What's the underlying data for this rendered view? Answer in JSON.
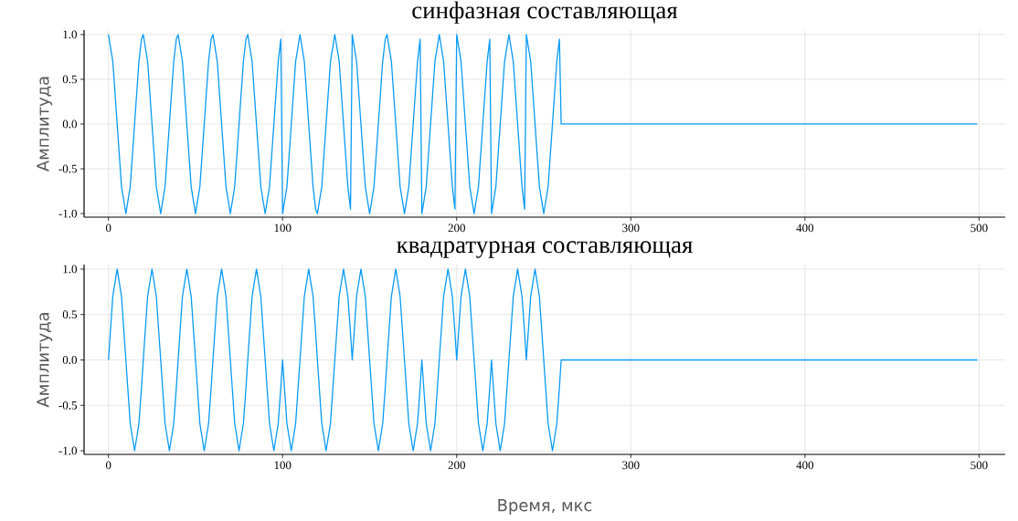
{
  "chart_data": [
    {
      "type": "line",
      "title": "синфазная составляющая",
      "ylabel": "Амплитуда",
      "xlim": [
        -14,
        515
      ],
      "ylim": [
        -1.04,
        1.05
      ],
      "xticks": [
        0,
        100,
        200,
        300,
        400,
        500
      ],
      "yticks": [
        {
          "value": -1,
          "label": "-1.0"
        },
        {
          "value": -0.5,
          "label": "-0.5"
        },
        {
          "value": 0,
          "label": "0.0"
        },
        {
          "value": 0.5,
          "label": "0.5"
        },
        {
          "value": 1,
          "label": "1.0"
        }
      ],
      "grid": true,
      "marker": "none",
      "x": [
        0,
        2.5,
        5,
        7.5,
        10,
        12.5,
        15,
        17.5,
        19,
        20,
        22.5,
        25,
        27.5,
        30,
        32.5,
        35,
        37.5,
        39,
        40,
        42.5,
        45,
        47.5,
        50,
        52.5,
        55,
        57.5,
        59,
        60,
        62.5,
        65,
        67.5,
        70,
        72.5,
        75,
        77.5,
        79,
        80,
        82.5,
        85,
        87.5,
        90,
        92.5,
        95,
        97.5,
        99,
        100,
        102.5,
        105,
        107.5,
        110,
        112.5,
        115,
        117.5,
        119,
        120,
        122.5,
        125,
        127.5,
        130,
        132.5,
        135,
        137.5,
        139,
        140,
        142.5,
        145,
        147.5,
        150,
        152.5,
        155,
        157.5,
        159,
        160,
        162.5,
        165,
        167.5,
        170,
        172.5,
        175,
        177.5,
        179,
        180,
        182.5,
        185,
        187.5,
        190,
        192.5,
        195,
        197.5,
        199,
        200,
        202.5,
        205,
        207.5,
        210,
        212.5,
        215,
        217.5,
        219,
        220,
        222.5,
        225,
        227.5,
        230,
        232.5,
        235,
        237.5,
        239,
        240,
        242.5,
        245,
        247.5,
        250,
        252.5,
        255,
        257.5,
        259,
        260,
        499
      ],
      "series": [
        {
          "color": "#0a9bf5",
          "values": [
            1,
            0.7,
            0,
            -0.7,
            -1,
            -0.7,
            0,
            0.7,
            0.95,
            1,
            0.7,
            0,
            -0.7,
            -1,
            -0.7,
            0,
            0.7,
            0.95,
            1,
            0.7,
            0,
            -0.7,
            -1,
            -0.7,
            0,
            0.7,
            0.95,
            1,
            0.7,
            0,
            -0.7,
            -1,
            -0.7,
            0,
            0.7,
            0.95,
            1,
            0.7,
            0,
            -0.7,
            -1,
            -0.7,
            0,
            0.7,
            0.95,
            -1,
            -0.7,
            0,
            0.7,
            1,
            0.7,
            0,
            -0.7,
            -0.95,
            -1,
            -0.7,
            0,
            0.7,
            1,
            0.7,
            0,
            -0.7,
            -0.95,
            1,
            0.7,
            0,
            -0.7,
            -1,
            -0.7,
            0,
            0.7,
            0.95,
            1,
            0.7,
            0,
            -0.7,
            -1,
            -0.7,
            0,
            0.7,
            0.95,
            -1,
            -0.7,
            0,
            0.7,
            1,
            0.7,
            0,
            -0.7,
            -0.95,
            1,
            0.7,
            0,
            -0.7,
            -1,
            -0.7,
            0,
            0.7,
            0.95,
            -1,
            -0.7,
            0,
            0.7,
            1,
            0.7,
            0,
            -0.7,
            -0.95,
            1,
            0.7,
            0,
            -0.7,
            -1,
            -0.7,
            0,
            0.7,
            0.95,
            0,
            0
          ]
        }
      ]
    },
    {
      "type": "line",
      "title": "квадратурная составляющая",
      "xlabel": "Время, мкс",
      "ylabel": "Амплитуда",
      "xlim": [
        -14,
        515
      ],
      "ylim": [
        -1.04,
        1.05
      ],
      "xticks": [
        0,
        100,
        200,
        300,
        400,
        500
      ],
      "yticks": [
        {
          "value": -1,
          "label": "-1.0"
        },
        {
          "value": -0.5,
          "label": "-0.5"
        },
        {
          "value": 0,
          "label": "0.0"
        },
        {
          "value": 0.5,
          "label": "0.5"
        },
        {
          "value": 1,
          "label": "1.0"
        }
      ],
      "grid": true,
      "marker": "none",
      "x": [
        0,
        2.5,
        5,
        7.5,
        10,
        12.5,
        15,
        17.5,
        19,
        20,
        22.5,
        25,
        27.5,
        30,
        32.5,
        35,
        37.5,
        39,
        40,
        42.5,
        45,
        47.5,
        50,
        52.5,
        55,
        57.5,
        59,
        60,
        62.5,
        65,
        67.5,
        70,
        72.5,
        75,
        77.5,
        79,
        80,
        82.5,
        85,
        87.5,
        90,
        92.5,
        95,
        97.5,
        99,
        100,
        102.5,
        105,
        107.5,
        110,
        112.5,
        115,
        117.5,
        119,
        120,
        122.5,
        125,
        127.5,
        130,
        132.5,
        135,
        137.5,
        139,
        140,
        142.5,
        145,
        147.5,
        150,
        152.5,
        155,
        157.5,
        159,
        160,
        162.5,
        165,
        167.5,
        170,
        172.5,
        175,
        177.5,
        179,
        180,
        182.5,
        185,
        187.5,
        190,
        192.5,
        195,
        197.5,
        199,
        200,
        202.5,
        205,
        207.5,
        210,
        212.5,
        215,
        217.5,
        219,
        220,
        222.5,
        225,
        227.5,
        230,
        232.5,
        235,
        237.5,
        239,
        240,
        242.5,
        245,
        247.5,
        250,
        252.5,
        255,
        257.5,
        259,
        260,
        499
      ],
      "series": [
        {
          "color": "#0a9bf5",
          "values": [
            0,
            0.7,
            1,
            0.7,
            0,
            -0.7,
            -1,
            -0.7,
            -0.3,
            0,
            0.7,
            1,
            0.7,
            0,
            -0.7,
            -1,
            -0.7,
            -0.3,
            0,
            0.7,
            1,
            0.7,
            0,
            -0.7,
            -1,
            -0.7,
            -0.3,
            0,
            0.7,
            1,
            0.7,
            0,
            -0.7,
            -1,
            -0.7,
            -0.3,
            0,
            0.7,
            1,
            0.7,
            0,
            -0.7,
            -1,
            -0.7,
            -0.3,
            0,
            -0.7,
            -1,
            -0.7,
            0,
            0.7,
            1,
            0.7,
            0.3,
            0,
            -0.7,
            -1,
            -0.7,
            0,
            0.7,
            1,
            0.7,
            0.3,
            0,
            0.7,
            1,
            0.7,
            0,
            -0.7,
            -1,
            -0.7,
            -0.3,
            0,
            0.7,
            1,
            0.7,
            0,
            -0.7,
            -1,
            -0.7,
            -0.3,
            0,
            -0.7,
            -1,
            -0.7,
            0,
            0.7,
            1,
            0.7,
            0.3,
            0,
            0.7,
            1,
            0.7,
            0,
            -0.7,
            -1,
            -0.7,
            -0.3,
            0,
            -0.7,
            -1,
            -0.7,
            0,
            0.7,
            1,
            0.7,
            0.3,
            0,
            0.7,
            1,
            0.7,
            0,
            -0.7,
            -1,
            -0.7,
            -0.3,
            0,
            0
          ]
        }
      ]
    }
  ]
}
